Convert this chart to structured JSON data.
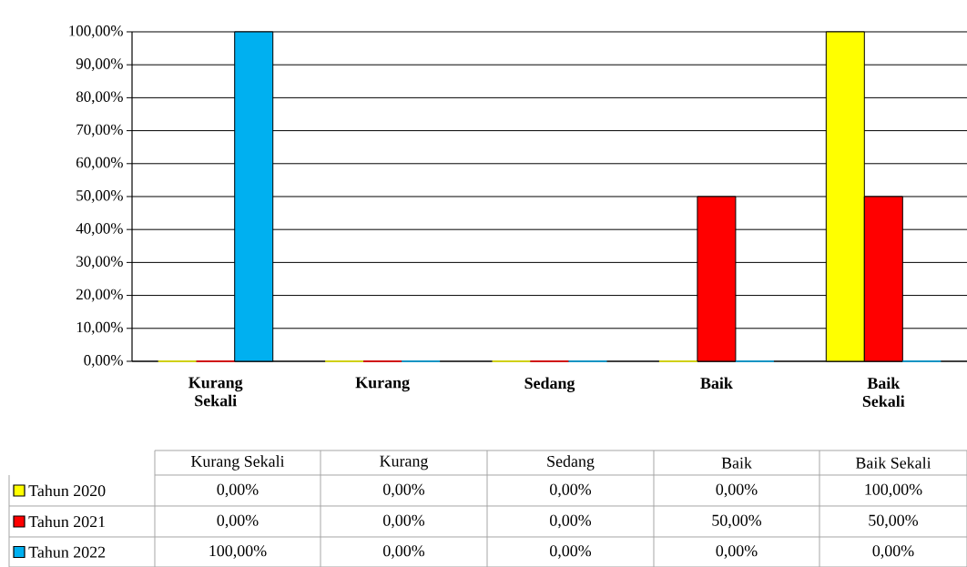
{
  "chart_data": {
    "type": "bar",
    "categories": [
      "Kurang Sekali",
      "Kurang",
      "Sedang",
      "Baik",
      "Baik Sekali"
    ],
    "series": [
      {
        "name": "Tahun 2020",
        "color": "#ffff00",
        "values": [
          0,
          0,
          0,
          0,
          100
        ],
        "value_labels": [
          "0,00%",
          "0,00%",
          "0,00%",
          "0,00%",
          "100,00%"
        ]
      },
      {
        "name": "Tahun 2021",
        "color": "#ff0000",
        "values": [
          0,
          0,
          0,
          50,
          50
        ],
        "value_labels": [
          "0,00%",
          "0,00%",
          "0,00%",
          "50,00%",
          "50,00%"
        ]
      },
      {
        "name": "Tahun 2022",
        "color": "#00b0f0",
        "values": [
          100,
          0,
          0,
          0,
          0
        ],
        "value_labels": [
          "100,00%",
          "0,00%",
          "0,00%",
          "0,00%",
          "0,00%"
        ]
      }
    ],
    "ylim": [
      0,
      100
    ],
    "yticks": [
      {
        "value": 0,
        "label": "0,00%"
      },
      {
        "value": 10,
        "label": "10,00%"
      },
      {
        "value": 20,
        "label": "20,00%"
      },
      {
        "value": 30,
        "label": "30,00%"
      },
      {
        "value": 40,
        "label": "40,00%"
      },
      {
        "value": 50,
        "label": "50,00%"
      },
      {
        "value": 60,
        "label": "60,00%"
      },
      {
        "value": 70,
        "label": "70,00%"
      },
      {
        "value": 80,
        "label": "80,00%"
      },
      {
        "value": 90,
        "label": "90,00%"
      },
      {
        "value": 100,
        "label": "100,00%"
      }
    ],
    "grid": "y",
    "legend": "bottom"
  }
}
